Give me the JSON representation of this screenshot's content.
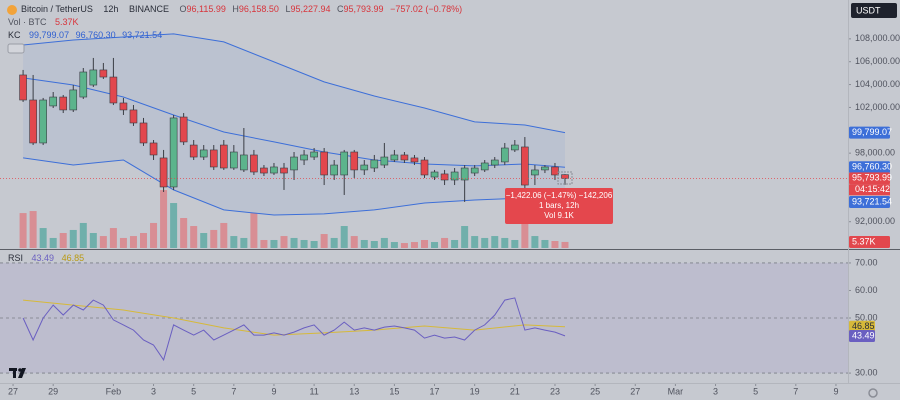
{
  "chart_data": [
    {
      "type": "candlestick",
      "title": "Bitcoin / TetherUS",
      "interval": "12h",
      "exchange": "BINANCE",
      "ohlc_prefixes": [
        "O",
        "H",
        "L",
        "C"
      ],
      "last_labels": {
        "open": "96,115.99",
        "high": "96,158.50",
        "low": "95,227.94",
        "close": "95,793.99",
        "change": "−757.02 (−0.78%)"
      },
      "currency": "USDT",
      "countdown": "04:15:42",
      "tooltip": {
        "change": "−1,422.06 (−1.47%) −142,206",
        "bars": "1 bars, 12h",
        "volume": "Vol 9.1K"
      },
      "up_color": "#5cb48c",
      "down_color": "#e2474d",
      "x": [
        2,
        3,
        4,
        5,
        6,
        7,
        8,
        9,
        10,
        11,
        12,
        13,
        14,
        15,
        16,
        17,
        18,
        19,
        20,
        21,
        22,
        23,
        24,
        25,
        26,
        27,
        28,
        29,
        30,
        31,
        32,
        33,
        34,
        35,
        36,
        37,
        38,
        39,
        40,
        41,
        42,
        43,
        44,
        45,
        46,
        47,
        48,
        49,
        50,
        51,
        52,
        53,
        54,
        55,
        56
      ],
      "open": [
        104840,
        102650,
        98890,
        102130,
        102910,
        101780,
        102910,
        103960,
        105280,
        104660,
        102390,
        101780,
        100640,
        98890,
        97580,
        95040,
        101160,
        98710,
        97660,
        98280,
        98710,
        96700,
        96530,
        97840,
        96700,
        96260,
        96700,
        96530,
        97400,
        97660,
        98100,
        96090,
        96090,
        98100,
        96530,
        96700,
        96960,
        97400,
        97840,
        97580,
        97400,
        95910,
        96180,
        95650,
        95650,
        96260,
        96530,
        96960,
        97230,
        98280,
        98540,
        96090,
        96530,
        96790,
        96115.99
      ],
      "high": [
        105280,
        104840,
        102830,
        103350,
        103090,
        103960,
        105450,
        106330,
        105890,
        106330,
        102830,
        102210,
        101080,
        99150,
        98280,
        101340,
        101510,
        99150,
        98710,
        98710,
        99150,
        98710,
        100200,
        98280,
        96960,
        97140,
        97140,
        98100,
        98280,
        98450,
        98450,
        97400,
        98280,
        98280,
        97400,
        97840,
        98890,
        98280,
        98100,
        97840,
        97660,
        96530,
        96530,
        96700,
        96960,
        96960,
        97400,
        97660,
        98890,
        99150,
        99410,
        96960,
        96960,
        97140,
        96158.5
      ],
      "low": [
        102480,
        98710,
        98710,
        101950,
        101510,
        101600,
        102740,
        103790,
        104490,
        102210,
        101340,
        100380,
        98630,
        97400,
        94600,
        94780,
        98710,
        97400,
        97400,
        96530,
        96530,
        96530,
        96350,
        96090,
        96000,
        96090,
        94780,
        95650,
        96960,
        97400,
        95210,
        95650,
        94340,
        95830,
        96090,
        96350,
        96700,
        97230,
        97140,
        96960,
        95830,
        95650,
        95210,
        95210,
        93730,
        96000,
        96350,
        96700,
        96960,
        98100,
        94950,
        95210,
        96260,
        95650,
        95227.94
      ],
      "close": [
        102650,
        98890,
        102650,
        102910,
        101780,
        103530,
        105100,
        105280,
        104660,
        102390,
        101780,
        100640,
        98890,
        97840,
        95040,
        101080,
        98980,
        97660,
        98280,
        96790,
        96700,
        98100,
        97840,
        96350,
        96260,
        96790,
        96260,
        97660,
        97840,
        98100,
        96090,
        96960,
        98100,
        96530,
        96960,
        97400,
        97660,
        97840,
        97400,
        97230,
        96090,
        96350,
        95650,
        96350,
        96700,
        96700,
        97140,
        97400,
        98450,
        98710,
        95210,
        96530,
        96790,
        96090,
        95793.99
      ],
      "volume": {
        "name": "Vol · BTC",
        "up_color": "#5aa9a1",
        "down_color": "#dc7f84",
        "y2lim": [
          0,
          220
        ],
        "last_label": "5.37K",
        "values": [
          31.0,
          32.8,
          17.7,
          8.9,
          13.3,
          16.0,
          22.2,
          13.3,
          10.6,
          17.7,
          8.9,
          10.6,
          13.3,
          22.2,
          51.4,
          39.9,
          26.6,
          19.5,
          13.3,
          16.0,
          22.2,
          10.6,
          8.9,
          31.0,
          7.1,
          7.1,
          10.6,
          8.9,
          7.1,
          6.2,
          12.4,
          8.9,
          19.5,
          10.6,
          7.1,
          6.2,
          8.9,
          5.3,
          4.4,
          5.3,
          7.1,
          5.3,
          8.9,
          7.1,
          19.5,
          10.6,
          8.9,
          10.6,
          8.9,
          7.1,
          31.0,
          10.6,
          7.1,
          6.2,
          5.37
        ]
      },
      "kc": {
        "name": "KC",
        "color": "#3d6fd8",
        "x": [
          2,
          7,
          12,
          17,
          22,
          27,
          32,
          37,
          42,
          47,
          52,
          56
        ],
        "upper": [
          107460,
          107900,
          108160,
          108430,
          107730,
          105980,
          104230,
          103000,
          101950,
          100730,
          100460,
          99799.07
        ],
        "middle": [
          104580,
          103960,
          102910,
          101340,
          99850,
          98980,
          98100,
          97400,
          97050,
          96880,
          97050,
          96760.3
        ],
        "lower": [
          97580,
          96960,
          97400,
          94780,
          93030,
          92590,
          92680,
          93030,
          93640,
          93900,
          94080,
          93721.54
        ],
        "last_labels": {
          "upper": "99,799.07",
          "middle": "96,760.30",
          "lower": "93,721.54"
        }
      },
      "xlim": [
        -0.3,
        84.2
      ],
      "ylim": [
        89700,
        111400
      ],
      "yticks": [
        {
          "value": 108000,
          "label": "108,000.00"
        },
        {
          "value": 106000,
          "label": "106,000.00"
        },
        {
          "value": 104000,
          "label": "104,000.00"
        },
        {
          "value": 102000,
          "label": "102,000.00"
        },
        {
          "value": 98000,
          "label": "98,000.00"
        },
        {
          "value": 92000,
          "label": "92,000.00"
        }
      ]
    },
    {
      "type": "line",
      "title": "RSI",
      "rsi": {
        "color": "#6a5fc1",
        "x": [
          2,
          3,
          4,
          5,
          6,
          7,
          8,
          9,
          10,
          11,
          12,
          13,
          14,
          15,
          16,
          17,
          18,
          19,
          20,
          21,
          22,
          23,
          24,
          25,
          26,
          27,
          28,
          29,
          30,
          31,
          32,
          33,
          34,
          35,
          36,
          37,
          38,
          39,
          40,
          41,
          42,
          43,
          44,
          45,
          46,
          47,
          48,
          49,
          50,
          51,
          52,
          53,
          54,
          55,
          56
        ],
        "values": [
          50.0,
          42.0,
          50.0,
          54.7,
          51.1,
          54.7,
          52.9,
          56.5,
          54.7,
          49.3,
          47.5,
          45.6,
          42.0,
          40.2,
          34.8,
          47.5,
          45.6,
          43.8,
          45.6,
          42.0,
          43.8,
          45.6,
          47.5,
          43.8,
          43.8,
          44.6,
          43.8,
          44.9,
          46.4,
          47.5,
          43.8,
          45.6,
          48.5,
          45.6,
          46.4,
          45.6,
          46.7,
          47.1,
          46.4,
          45.6,
          42.7,
          43.8,
          42.7,
          43.1,
          42.0,
          45.6,
          47.5,
          51.1,
          56.5,
          57.3,
          45.6,
          46.4,
          45.6,
          44.9,
          43.49
        ]
      },
      "ma": {
        "color": "#d6b93a",
        "x": [
          2,
          7,
          12,
          17,
          22,
          27,
          32,
          37,
          42,
          47,
          52,
          56
        ],
        "values": [
          56.5,
          54.7,
          52.9,
          50.0,
          46.4,
          43.8,
          44.6,
          45.6,
          47.1,
          45.6,
          47.5,
          46.85
        ]
      },
      "band_levels": [
        70,
        50,
        30
      ],
      "xlim": [
        -0.3,
        84.2
      ],
      "ylim": [
        26.4,
        74.7
      ],
      "yticks": [
        {
          "value": 70,
          "label": "70.00"
        },
        {
          "value": 60,
          "label": "60.00"
        },
        {
          "value": 50,
          "label": "50.00"
        },
        {
          "value": 30,
          "label": "30.00"
        }
      ],
      "xticks": [
        {
          "value": 1,
          "label": "27"
        },
        {
          "value": 5,
          "label": "29"
        },
        {
          "value": 11,
          "label": "Feb"
        },
        {
          "value": 15,
          "label": "3"
        },
        {
          "value": 19,
          "label": "5"
        },
        {
          "value": 23,
          "label": "7"
        },
        {
          "value": 27,
          "label": "9"
        },
        {
          "value": 31,
          "label": "11"
        },
        {
          "value": 35,
          "label": "13"
        },
        {
          "value": 39,
          "label": "15"
        },
        {
          "value": 43,
          "label": "17"
        },
        {
          "value": 47,
          "label": "19"
        },
        {
          "value": 51,
          "label": "21"
        },
        {
          "value": 55,
          "label": "23"
        },
        {
          "value": 59,
          "label": "25"
        },
        {
          "value": 63,
          "label": "27"
        },
        {
          "value": 67,
          "label": "Mar"
        },
        {
          "value": 71,
          "label": "3"
        },
        {
          "value": 75,
          "label": "5"
        },
        {
          "value": 79,
          "label": "7"
        },
        {
          "value": 83,
          "label": "9"
        }
      ]
    }
  ]
}
